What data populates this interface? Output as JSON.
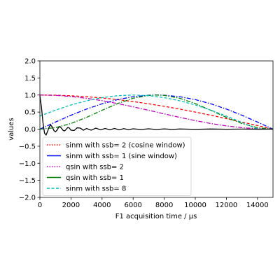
{
  "chart_data": {
    "type": "line",
    "title": "",
    "xlabel": "F1 acquisition time / µs",
    "ylabel": "values",
    "xlim": [
      0,
      15000
    ],
    "ylim": [
      -2.0,
      2.0
    ],
    "xticks": [
      0,
      2000,
      4000,
      6000,
      8000,
      10000,
      12000,
      14000
    ],
    "yticks": [
      -2.0,
      -1.5,
      -1.0,
      -0.5,
      0.0,
      0.5,
      1.0,
      1.5,
      2.0
    ],
    "xtick_labels": [
      "0",
      "2000",
      "4000",
      "6000",
      "8000",
      "10000",
      "12000",
      "14000"
    ],
    "ytick_labels": [
      "−2.0",
      "−1.5",
      "−1.0",
      "−0.5",
      "0.0",
      "0.5",
      "1.0",
      "1.5",
      "2.0"
    ],
    "grid": false,
    "legend_position": "lower-left",
    "legend": [
      {
        "label": "sinm with ssb= 2 (cosine window)",
        "color": "#ff0000",
        "style": "dotted"
      },
      {
        "label": "sinm with ssb= 1 (sine window)",
        "color": "#0000ff",
        "style": "solid"
      },
      {
        "label": "qsin with ssb= 2",
        "color": "#bf00bf",
        "style": "dotted"
      },
      {
        "label": "qsin with ssb= 1",
        "color": "#008000",
        "style": "solid"
      },
      {
        "label": "sinm with ssb= 8",
        "color": "#00bfbf",
        "style": "dashed"
      }
    ],
    "series": [
      {
        "color": "#ff0000",
        "style": "dashed",
        "x": [
          0,
          1000,
          2000,
          3000,
          4000,
          5000,
          6000,
          7000,
          8000,
          9000,
          10000,
          11000,
          12000,
          13000,
          14000,
          15000
        ],
        "values": [
          1.0,
          0.995,
          0.978,
          0.951,
          0.914,
          0.866,
          0.809,
          0.743,
          0.669,
          0.588,
          0.5,
          0.407,
          0.309,
          0.208,
          0.105,
          0.0
        ]
      },
      {
        "color": "#0000ff",
        "style": "dashdot",
        "x": [
          0,
          1000,
          2000,
          3000,
          4000,
          5000,
          6000,
          7000,
          7500,
          8000,
          9000,
          10000,
          11000,
          12000,
          13000,
          14000,
          15000
        ],
        "values": [
          0.0,
          0.208,
          0.407,
          0.588,
          0.743,
          0.866,
          0.951,
          0.995,
          1.0,
          0.995,
          0.951,
          0.866,
          0.743,
          0.588,
          0.407,
          0.208,
          0.0
        ]
      },
      {
        "color": "#bf00bf",
        "style": "dashdot",
        "x": [
          0,
          1000,
          2000,
          3000,
          4000,
          5000,
          6000,
          7000,
          8000,
          9000,
          10000,
          11000,
          12000,
          13000,
          14000,
          15000
        ],
        "values": [
          1.0,
          0.989,
          0.957,
          0.905,
          0.835,
          0.75,
          0.655,
          0.552,
          0.448,
          0.345,
          0.25,
          0.165,
          0.095,
          0.043,
          0.011,
          0.0
        ]
      },
      {
        "color": "#008000",
        "style": "dashdot",
        "x": [
          0,
          1000,
          2000,
          3000,
          4000,
          5000,
          6000,
          7000,
          7500,
          8000,
          9000,
          10000,
          11000,
          12000,
          13000,
          14000,
          15000
        ],
        "values": [
          0.0,
          0.043,
          0.165,
          0.345,
          0.552,
          0.75,
          0.905,
          0.989,
          1.0,
          0.989,
          0.905,
          0.75,
          0.552,
          0.345,
          0.165,
          0.043,
          0.0
        ]
      },
      {
        "color": "#00bfbf",
        "style": "dashed",
        "x": [
          0,
          1000,
          2000,
          3000,
          4000,
          5000,
          6000,
          7000,
          8000,
          9000,
          10000,
          11000,
          12000,
          13000,
          14000,
          15000
        ],
        "values": [
          0.383,
          0.556,
          0.708,
          0.831,
          0.924,
          0.981,
          1.0,
          0.981,
          0.924,
          0.831,
          0.708,
          0.556,
          0.383,
          0.195,
          0.0,
          -0.0
        ]
      },
      {
        "color": "#000000",
        "style": "solid",
        "x": [
          0,
          100,
          200,
          300,
          400,
          500,
          600,
          700,
          800,
          900,
          1000,
          1100,
          1200,
          1300,
          1400,
          1500,
          1600,
          1700,
          1800,
          1900,
          2000,
          2200,
          2400,
          2600,
          2800,
          3000,
          3300,
          3600,
          3900,
          4200,
          4500,
          4800,
          5100,
          5400,
          5700,
          6000,
          6500,
          7000,
          7500,
          8000,
          8500,
          9000,
          10000,
          11000,
          12000,
          13000,
          14000,
          15000
        ],
        "values": [
          0.98,
          0.65,
          0.18,
          -0.12,
          -0.17,
          -0.06,
          0.07,
          0.12,
          0.06,
          -0.04,
          -0.08,
          -0.03,
          0.05,
          0.07,
          0.02,
          -0.04,
          -0.05,
          0.0,
          0.05,
          0.03,
          -0.03,
          -0.04,
          0.04,
          0.03,
          -0.03,
          0.02,
          -0.03,
          0.03,
          -0.02,
          0.02,
          -0.02,
          0.02,
          -0.02,
          0.015,
          -0.015,
          0.01,
          -0.01,
          0.01,
          -0.01,
          0.008,
          -0.008,
          0.005,
          -0.005,
          0.004,
          -0.003,
          0.002,
          -0.001,
          0.0
        ]
      }
    ]
  }
}
